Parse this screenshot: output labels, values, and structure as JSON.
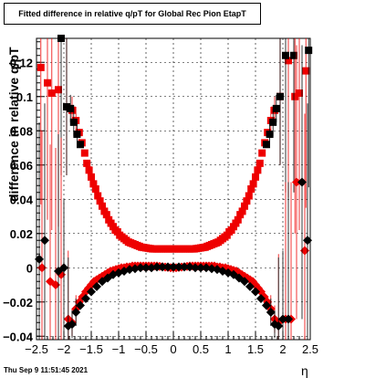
{
  "title": "Fitted difference in relative q/pT for Global Rec Pion EtapT",
  "footer": "Thu Sep  9 11:51:45 2021",
  "chart_data": {
    "type": "scatter",
    "title": "Fitted difference in relative q/pT for Global Rec Pion EtapT",
    "xlabel": "η",
    "ylabel": "difference in relative q/pT",
    "xlim": [
      -2.5,
      2.5
    ],
    "ylim": [
      -0.042,
      0.134
    ],
    "grid": true,
    "x_ticks": [
      "−2.5",
      "−2",
      "−1.5",
      "−1",
      "−0.5",
      "0",
      "0.5",
      "1",
      "1.5",
      "2",
      "2.5"
    ],
    "y_ticks": [
      "−0.04",
      "−0.02",
      "0",
      "0.02",
      "0.04",
      "0.06",
      "0.08",
      "0.1",
      "0.12"
    ],
    "series": [
      {
        "color": "#ee0000",
        "marker": "square",
        "x": [
          -2.42,
          -2.3,
          -2.22,
          -2.1,
          -1.95,
          -1.85,
          -1.78,
          -1.72,
          -1.67,
          -1.62,
          -1.58,
          -1.54,
          -1.5,
          -1.46,
          -1.42,
          -1.38,
          -1.34,
          -1.3,
          -1.26,
          -1.22,
          -1.18,
          -1.14,
          -1.1,
          -1.06,
          -1.02,
          -0.98,
          -0.94,
          -0.9,
          -0.86,
          -0.82,
          -0.78,
          -0.74,
          -0.7,
          -0.66,
          -0.62,
          -0.58,
          -0.54,
          -0.5,
          -0.46,
          -0.42,
          -0.38,
          -0.34,
          -0.3,
          -0.26,
          -0.22,
          -0.18,
          -0.14,
          -0.1,
          -0.06,
          -0.02,
          0.02,
          0.06,
          0.1,
          0.14,
          0.18,
          0.22,
          0.26,
          0.3,
          0.34,
          0.38,
          0.42,
          0.46,
          0.5,
          0.54,
          0.58,
          0.62,
          0.66,
          0.7,
          0.74,
          0.78,
          0.82,
          0.86,
          0.9,
          0.94,
          0.98,
          1.02,
          1.06,
          1.1,
          1.14,
          1.18,
          1.22,
          1.26,
          1.3,
          1.34,
          1.38,
          1.42,
          1.46,
          1.5,
          1.54,
          1.58,
          1.62,
          1.67,
          1.72,
          1.78,
          1.85,
          1.95,
          2.1,
          2.22,
          2.3,
          2.42
        ],
        "y": [
          0.117,
          0.108,
          0.102,
          0.104,
          0.094,
          0.092,
          0.086,
          0.079,
          0.073,
          0.067,
          0.061,
          0.057,
          0.053,
          0.049,
          0.046,
          0.042,
          0.039,
          0.036,
          0.033,
          0.031,
          0.028,
          0.026,
          0.024,
          0.022,
          0.021,
          0.019,
          0.018,
          0.017,
          0.016,
          0.015,
          0.0145,
          0.014,
          0.0135,
          0.013,
          0.0125,
          0.012,
          0.0118,
          0.0116,
          0.0114,
          0.0112,
          0.011,
          0.011,
          0.011,
          0.011,
          0.011,
          0.011,
          0.011,
          0.011,
          0.011,
          0.011,
          0.011,
          0.011,
          0.011,
          0.011,
          0.011,
          0.011,
          0.011,
          0.011,
          0.011,
          0.011,
          0.0112,
          0.0114,
          0.0116,
          0.0118,
          0.012,
          0.0125,
          0.013,
          0.0135,
          0.014,
          0.0145,
          0.015,
          0.016,
          0.017,
          0.018,
          0.019,
          0.021,
          0.022,
          0.024,
          0.026,
          0.028,
          0.031,
          0.033,
          0.036,
          0.039,
          0.042,
          0.046,
          0.049,
          0.053,
          0.057,
          0.061,
          0.067,
          0.073,
          0.079,
          0.086,
          0.092,
          0.1,
          0.121,
          0.1,
          0.102,
          0.115
        ]
      },
      {
        "color": "#000000",
        "marker": "square",
        "x": [
          -2.05,
          -1.95,
          -1.88,
          -1.82,
          -1.76,
          -1.7,
          1.7,
          1.76,
          1.82,
          1.88,
          1.95,
          2.05,
          2.2,
          2.47
        ],
        "y": [
          0.134,
          0.094,
          0.093,
          0.085,
          0.078,
          0.072,
          0.072,
          0.078,
          0.085,
          0.093,
          0.1,
          0.124,
          0.124,
          0.127
        ]
      },
      {
        "color": "#ee0000",
        "marker": "diamond",
        "x": [
          -2.4,
          -2.25,
          -2.15,
          -2.05,
          -1.92,
          -1.85,
          -1.78,
          -1.72,
          -1.66,
          -1.6,
          -1.55,
          -1.5,
          -1.45,
          -1.4,
          -1.35,
          -1.3,
          -1.25,
          -1.2,
          -1.15,
          -1.1,
          -1.05,
          -1.0,
          -0.95,
          -0.9,
          -0.85,
          -0.8,
          -0.75,
          -0.7,
          -0.65,
          -0.6,
          -0.55,
          -0.5,
          -0.45,
          -0.4,
          -0.35,
          -0.3,
          -0.25,
          -0.2,
          -0.15,
          -0.1,
          -0.05,
          0.0,
          0.05,
          0.1,
          0.15,
          0.2,
          0.25,
          0.3,
          0.35,
          0.4,
          0.45,
          0.5,
          0.55,
          0.6,
          0.65,
          0.7,
          0.75,
          0.8,
          0.85,
          0.9,
          0.95,
          1.0,
          1.05,
          1.1,
          1.15,
          1.2,
          1.25,
          1.3,
          1.35,
          1.4,
          1.45,
          1.5,
          1.55,
          1.6,
          1.66,
          1.72,
          1.78,
          1.85,
          1.92,
          2.05,
          2.15,
          2.25,
          2.4
        ],
        "y": [
          0.0,
          -0.008,
          -0.01,
          -0.004,
          -0.03,
          -0.032,
          -0.024,
          -0.02,
          -0.017,
          -0.014,
          -0.012,
          -0.01,
          -0.008,
          -0.007,
          -0.006,
          -0.005,
          -0.004,
          -0.003,
          -0.002,
          -0.0015,
          -0.001,
          -0.0005,
          0.0,
          0.0,
          0.0005,
          0.0005,
          0.001,
          0.001,
          0.001,
          0.001,
          0.001,
          0.001,
          0.001,
          0.001,
          0.001,
          0.001,
          0.0008,
          0.0006,
          0.0004,
          0.0002,
          0.0,
          0.0,
          0.0,
          0.0002,
          0.0004,
          0.0006,
          0.0008,
          0.001,
          0.001,
          0.001,
          0.001,
          0.001,
          0.001,
          0.001,
          0.001,
          0.001,
          0.001,
          0.0005,
          0.0005,
          0.0,
          0.0,
          -0.0005,
          -0.001,
          -0.0015,
          -0.002,
          -0.003,
          -0.004,
          -0.005,
          -0.006,
          -0.007,
          -0.008,
          -0.01,
          -0.012,
          -0.014,
          -0.017,
          -0.02,
          -0.024,
          -0.03,
          -0.032,
          -0.03,
          -0.03,
          0.05,
          0.01
        ]
      },
      {
        "color": "#000000",
        "marker": "diamond",
        "x": [
          -2.45,
          -2.35,
          -2.1,
          -2.0,
          -1.92,
          -1.85,
          -1.78,
          -1.7,
          -1.6,
          -1.5,
          -1.4,
          -1.3,
          -1.2,
          -1.1,
          -1.0,
          -0.9,
          -0.8,
          -0.7,
          -0.6,
          -0.5,
          -0.4,
          -0.3,
          -0.2,
          -0.1,
          0.0,
          0.1,
          0.2,
          0.3,
          0.4,
          0.5,
          0.6,
          0.7,
          0.8,
          0.9,
          1.0,
          1.1,
          1.2,
          1.3,
          1.4,
          1.5,
          1.6,
          1.7,
          1.78,
          1.85,
          1.92,
          2.0,
          2.1,
          2.35,
          2.45
        ],
        "y": [
          0.005,
          0.016,
          -0.002,
          0.0,
          -0.034,
          -0.033,
          -0.026,
          -0.022,
          -0.018,
          -0.014,
          -0.011,
          -0.008,
          -0.006,
          -0.004,
          -0.003,
          -0.002,
          -0.001,
          -0.0005,
          0.0,
          0.0,
          0.0,
          0.0005,
          0.0005,
          0.0005,
          0.0005,
          0.0005,
          0.0005,
          0.0005,
          0.0,
          0.0,
          0.0,
          -0.0005,
          -0.001,
          -0.002,
          -0.003,
          -0.004,
          -0.006,
          -0.008,
          -0.011,
          -0.014,
          -0.018,
          -0.022,
          -0.026,
          -0.033,
          -0.034,
          -0.03,
          -0.03,
          0.05,
          0.016
        ]
      }
    ]
  }
}
